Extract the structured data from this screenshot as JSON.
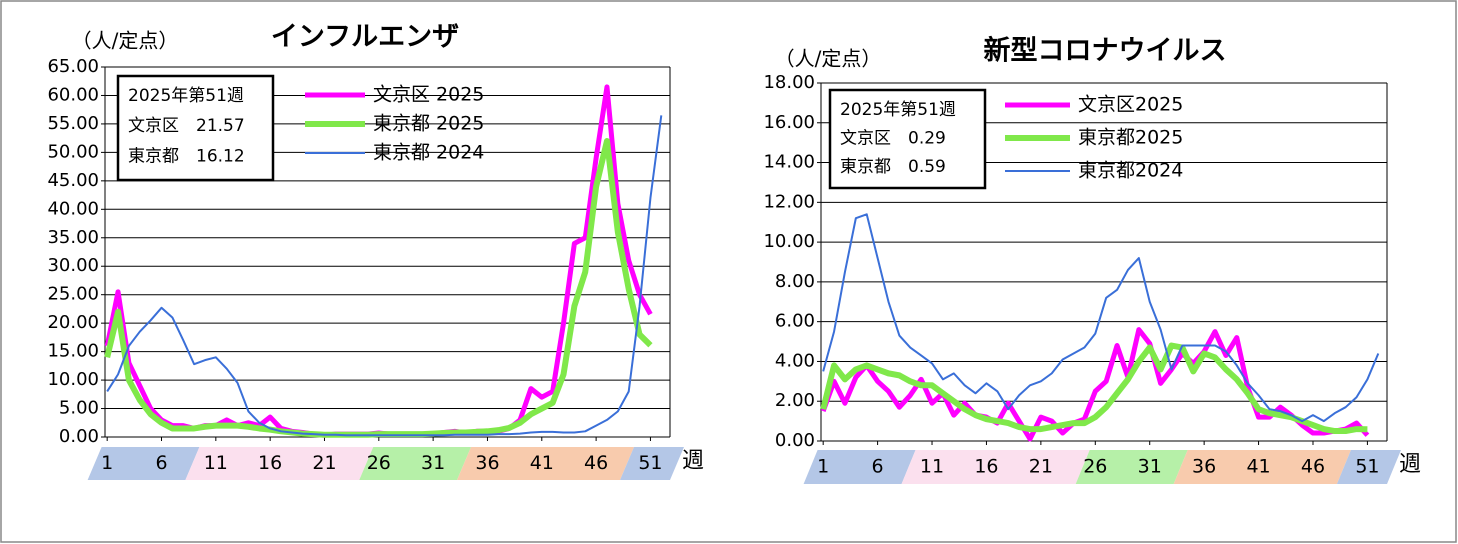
{
  "chart_data": [
    {
      "type": "line",
      "title": "インフルエンザ",
      "y_label": "（人/定点）",
      "x_label": "週",
      "info_box": [
        "2025年第51週",
        "文京区　21.57",
        "東京都　16.12"
      ],
      "x": [
        1,
        2,
        3,
        4,
        5,
        6,
        7,
        8,
        9,
        10,
        11,
        12,
        13,
        14,
        15,
        16,
        17,
        18,
        19,
        20,
        21,
        22,
        23,
        24,
        25,
        26,
        27,
        28,
        29,
        30,
        31,
        32,
        33,
        34,
        35,
        36,
        37,
        38,
        39,
        40,
        41,
        42,
        43,
        44,
        45,
        46,
        47,
        48,
        49,
        50,
        51,
        52
      ],
      "xlim": [
        0.8,
        52.8
      ],
      "xticks": [
        1,
        6,
        11,
        16,
        21,
        26,
        31,
        36,
        41,
        46,
        51
      ],
      "ylim": [
        0,
        65
      ],
      "yticks": [
        {
          "value": 0,
          "label": "0.00"
        },
        {
          "value": 5,
          "label": "5.00"
        },
        {
          "value": 10,
          "label": "10.00"
        },
        {
          "value": 15,
          "label": "15.00"
        },
        {
          "value": 20,
          "label": "20.00"
        },
        {
          "value": 25,
          "label": "25.00"
        },
        {
          "value": 30,
          "label": "30.00"
        },
        {
          "value": 35,
          "label": "35.00"
        },
        {
          "value": 40,
          "label": "40.00"
        },
        {
          "value": 45,
          "label": "45.00"
        },
        {
          "value": 50,
          "label": "50.00"
        },
        {
          "value": 55,
          "label": "55.00"
        },
        {
          "value": 60,
          "label": "60.00"
        },
        {
          "value": 65,
          "label": "65.00"
        }
      ],
      "grid": true,
      "series": [
        {
          "name": "文京区 2025",
          "color": "#ff00ff",
          "values": [
            16,
            25.5,
            13,
            9,
            5,
            3,
            2,
            2,
            1.5,
            2,
            2,
            3,
            2,
            2.5,
            2,
            3.5,
            1.5,
            1,
            0.8,
            0.5,
            0.3,
            0.5,
            0.5,
            0.5,
            0.5,
            0.7,
            0.5,
            0.5,
            0.5,
            0.5,
            0.5,
            0.8,
            1,
            0.7,
            1,
            1,
            1,
            1.5,
            3,
            8.5,
            7,
            8,
            20,
            34,
            35,
            49,
            61.5,
            41,
            31,
            25,
            21.57,
            null
          ]
        },
        {
          "name": "東京都 2025",
          "color": "#80e84a",
          "values": [
            14,
            22,
            10,
            6.5,
            4,
            2.5,
            1.5,
            1.5,
            1.5,
            1.8,
            2,
            2,
            2,
            1.8,
            1.5,
            1.3,
            1,
            0.8,
            0.6,
            0.5,
            0.4,
            0.4,
            0.4,
            0.4,
            0.4,
            0.5,
            0.5,
            0.5,
            0.5,
            0.5,
            0.6,
            0.7,
            0.8,
            0.8,
            0.9,
            1,
            1.2,
            1.6,
            2.5,
            4,
            5,
            6,
            11,
            23,
            29,
            44,
            52,
            36,
            26,
            18,
            16.12,
            null
          ]
        },
        {
          "name": "東京都 2024",
          "color": "#3a6fd8",
          "values": [
            8,
            11,
            16,
            18.5,
            20.5,
            22.7,
            21,
            17,
            12.8,
            13.5,
            14,
            12,
            9.5,
            4.5,
            2.5,
            1.5,
            1,
            0.8,
            0.6,
            0.5,
            0.4,
            0.4,
            0.3,
            0.3,
            0.3,
            0.3,
            0.3,
            0.3,
            0.3,
            0.3,
            0.3,
            0.3,
            0.4,
            0.4,
            0.4,
            0.4,
            0.5,
            0.5,
            0.6,
            0.8,
            0.9,
            0.9,
            0.8,
            0.8,
            1,
            2,
            3,
            4.5,
            8,
            23,
            42,
            56.5
          ]
        }
      ]
    },
    {
      "type": "line",
      "title": "新型コロナウイルス",
      "y_label": "（人/定点）",
      "x_label": "週",
      "info_box": [
        "2025年第51週",
        "文京区　0.29",
        "東京都　0.59"
      ],
      "x": [
        1,
        2,
        3,
        4,
        5,
        6,
        7,
        8,
        9,
        10,
        11,
        12,
        13,
        14,
        15,
        16,
        17,
        18,
        19,
        20,
        21,
        22,
        23,
        24,
        25,
        26,
        27,
        28,
        29,
        30,
        31,
        32,
        33,
        34,
        35,
        36,
        37,
        38,
        39,
        40,
        41,
        42,
        43,
        44,
        45,
        46,
        47,
        48,
        49,
        50,
        51,
        52
      ],
      "xlim": [
        0.8,
        52.8
      ],
      "xticks": [
        1,
        6,
        11,
        16,
        21,
        26,
        31,
        36,
        41,
        46,
        51
      ],
      "ylim": [
        0,
        18
      ],
      "yticks": [
        {
          "value": 0,
          "label": "0.00"
        },
        {
          "value": 2,
          "label": "2.00"
        },
        {
          "value": 4,
          "label": "4.00"
        },
        {
          "value": 6,
          "label": "6.00"
        },
        {
          "value": 8,
          "label": "8.00"
        },
        {
          "value": 10,
          "label": "10.00"
        },
        {
          "value": 12,
          "label": "12.00"
        },
        {
          "value": 14,
          "label": "14.00"
        },
        {
          "value": 16,
          "label": "16.00"
        },
        {
          "value": 18,
          "label": "18.00"
        }
      ],
      "grid": true,
      "series": [
        {
          "name": "文京区2025",
          "color": "#ff00ff",
          "values": [
            1.5,
            3,
            1.9,
            3.2,
            3.8,
            3,
            2.5,
            1.7,
            2.3,
            3.1,
            1.9,
            2.4,
            1.3,
            1.9,
            1.3,
            1.2,
            0.9,
            1.9,
            1,
            0.1,
            1.2,
            1,
            0.4,
            0.9,
            1.1,
            2.5,
            3,
            4.8,
            3.2,
            5.6,
            4.9,
            2.9,
            3.6,
            4.4,
            3.9,
            4.5,
            5.5,
            4.3,
            5.2,
            2.7,
            1.2,
            1.2,
            1.7,
            1.3,
            0.8,
            0.4,
            0.4,
            0.5,
            0.6,
            0.9,
            0.29,
            null
          ]
        },
        {
          "name": "東京都2025",
          "color": "#80e84a",
          "values": [
            1.6,
            3.8,
            3.1,
            3.6,
            3.8,
            3.6,
            3.4,
            3.3,
            3,
            2.8,
            2.8,
            2.4,
            2,
            1.6,
            1.3,
            1.1,
            1,
            0.9,
            0.7,
            0.6,
            0.6,
            0.7,
            0.8,
            0.9,
            0.9,
            1.2,
            1.7,
            2.4,
            3.1,
            4,
            4.7,
            3.6,
            4.8,
            4.7,
            3.5,
            4.4,
            4.2,
            3.6,
            3.1,
            2.4,
            1.6,
            1.4,
            1.3,
            1.2,
            1,
            0.8,
            0.6,
            0.5,
            0.5,
            0.6,
            0.59,
            null
          ]
        },
        {
          "name": "東京都2024",
          "color": "#3a6fd8",
          "values": [
            3.5,
            5.5,
            8.5,
            11.2,
            11.4,
            9.2,
            7,
            5.3,
            4.7,
            4.3,
            3.9,
            3.1,
            3.4,
            2.8,
            2.4,
            2.9,
            2.5,
            1.6,
            2.3,
            2.8,
            3,
            3.4,
            4.1,
            4.4,
            4.7,
            5.4,
            7.2,
            7.6,
            8.6,
            9.2,
            7,
            5.6,
            3.6,
            4.8,
            4.8,
            4.8,
            4.8,
            4.5,
            3.8,
            2.9,
            2.3,
            1.6,
            1.5,
            1.3,
            1,
            1.3,
            1,
            1.4,
            1.7,
            2.2,
            3.1,
            4.4
          ]
        }
      ]
    }
  ]
}
